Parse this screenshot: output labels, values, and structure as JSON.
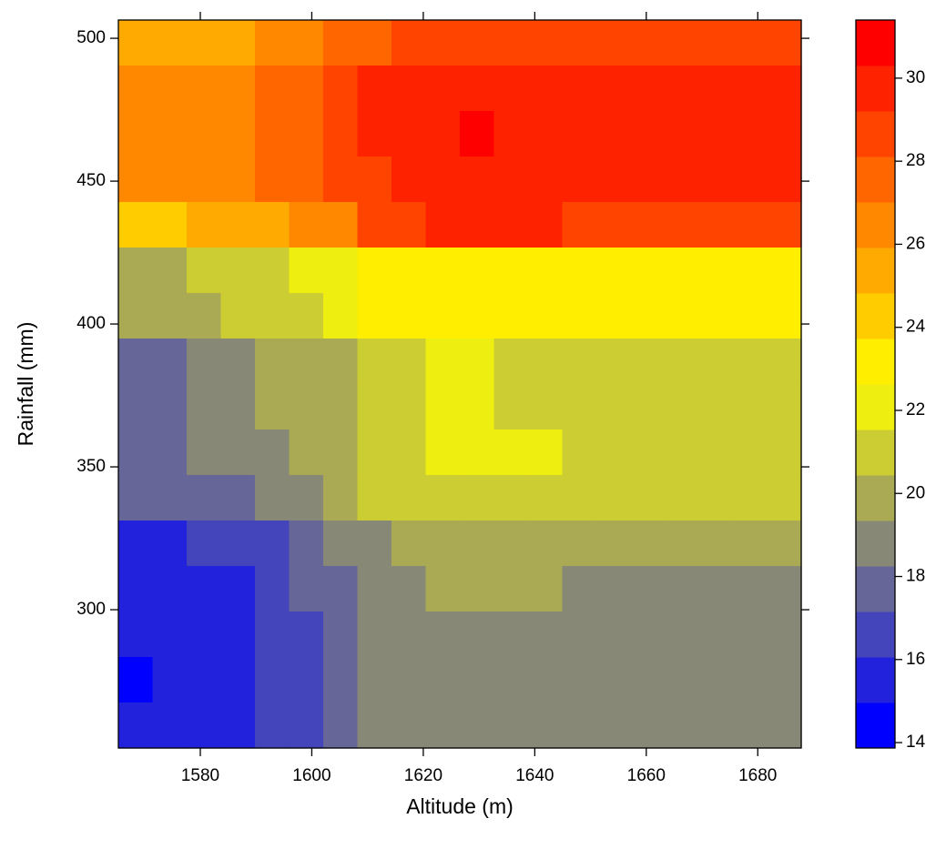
{
  "chart_data": {
    "type": "heatmap",
    "xlabel": "Altitude (m)",
    "ylabel": "Rainfall (mm)",
    "x": [
      1568.36,
      1574.49,
      1580.61,
      1586.74,
      1592.86,
      1598.99,
      1605.11,
      1611.24,
      1617.36,
      1623.49,
      1629.61,
      1635.74,
      1641.86,
      1647.99,
      1654.11,
      1660.24,
      1666.36,
      1672.49,
      1678.61,
      1684.74
    ],
    "y": [
      498.44,
      482.51,
      466.59,
      450.66,
      434.74,
      418.81,
      402.89,
      386.96,
      371.04,
      355.11,
      339.19,
      323.26,
      307.34,
      291.41,
      275.49,
      259.56
    ],
    "z": [
      [
        25.4,
        25.4,
        25.4,
        25.4,
        26.5,
        26.5,
        27.6,
        27.6,
        28.7,
        28.7,
        28.7,
        28.7,
        28.7,
        28.7,
        28.7,
        28.7,
        28.7,
        28.7,
        28.7,
        28.7
      ],
      [
        26.5,
        26.5,
        26.5,
        26.5,
        27.6,
        27.6,
        28.7,
        29.8,
        29.8,
        29.8,
        29.8,
        29.8,
        29.8,
        29.8,
        29.8,
        29.8,
        29.8,
        29.8,
        29.8,
        29.8
      ],
      [
        26.5,
        26.5,
        26.5,
        26.5,
        27.6,
        27.6,
        28.7,
        29.8,
        29.8,
        29.8,
        30.9,
        29.8,
        29.8,
        29.8,
        29.8,
        29.8,
        29.8,
        29.8,
        29.8,
        29.8
      ],
      [
        26.5,
        26.5,
        26.5,
        26.5,
        27.6,
        27.6,
        28.7,
        28.7,
        29.8,
        29.8,
        29.8,
        29.8,
        29.8,
        29.8,
        29.8,
        29.8,
        29.8,
        29.8,
        29.8,
        29.8
      ],
      [
        24.3,
        24.3,
        25.4,
        25.4,
        25.4,
        26.5,
        26.5,
        28.7,
        28.7,
        29.8,
        29.8,
        29.8,
        29.8,
        28.7,
        28.7,
        28.7,
        28.7,
        28.7,
        28.7,
        28.7
      ],
      [
        19.9,
        19.9,
        21.0,
        21.0,
        21.0,
        22.1,
        22.1,
        23.2,
        23.2,
        23.2,
        23.2,
        23.2,
        23.2,
        23.2,
        23.2,
        23.2,
        23.2,
        23.2,
        23.2,
        23.2
      ],
      [
        19.9,
        19.9,
        19.9,
        21.0,
        21.0,
        21.0,
        22.1,
        23.2,
        23.2,
        23.2,
        23.2,
        23.2,
        23.2,
        23.2,
        23.2,
        23.2,
        23.2,
        23.2,
        23.2,
        23.2
      ],
      [
        17.7,
        17.7,
        18.8,
        18.8,
        19.9,
        19.9,
        19.9,
        21.0,
        21.0,
        22.1,
        22.1,
        21.0,
        21.0,
        21.0,
        21.0,
        21.0,
        21.0,
        21.0,
        21.0,
        21.0
      ],
      [
        17.7,
        17.7,
        18.8,
        18.8,
        19.9,
        19.9,
        19.9,
        21.0,
        21.0,
        22.1,
        22.1,
        21.0,
        21.0,
        21.0,
        21.0,
        21.0,
        21.0,
        21.0,
        21.0,
        21.0
      ],
      [
        17.7,
        17.7,
        18.8,
        18.8,
        18.8,
        19.9,
        19.9,
        21.0,
        21.0,
        22.1,
        22.1,
        22.1,
        22.1,
        21.0,
        21.0,
        21.0,
        21.0,
        21.0,
        21.0,
        21.0
      ],
      [
        17.7,
        17.7,
        17.7,
        17.7,
        18.8,
        18.8,
        19.9,
        21.0,
        21.0,
        21.0,
        21.0,
        21.0,
        21.0,
        21.0,
        21.0,
        21.0,
        21.0,
        21.0,
        21.0,
        21.0
      ],
      [
        15.5,
        15.5,
        16.6,
        16.6,
        16.6,
        17.7,
        18.8,
        18.8,
        19.9,
        19.9,
        19.9,
        19.9,
        19.9,
        19.9,
        19.9,
        19.9,
        19.9,
        19.9,
        19.9,
        19.9
      ],
      [
        15.5,
        15.5,
        15.5,
        15.5,
        16.6,
        17.7,
        17.7,
        18.8,
        18.8,
        19.9,
        19.9,
        19.9,
        19.9,
        18.8,
        18.8,
        18.8,
        18.8,
        18.8,
        18.8,
        18.8
      ],
      [
        15.5,
        15.5,
        15.5,
        15.5,
        16.6,
        16.6,
        17.7,
        18.8,
        18.8,
        18.8,
        18.8,
        18.8,
        18.8,
        18.8,
        18.8,
        18.8,
        18.8,
        18.8,
        18.8,
        18.8
      ],
      [
        14.4,
        15.5,
        15.5,
        15.5,
        16.6,
        16.6,
        17.7,
        18.8,
        18.8,
        18.8,
        18.8,
        18.8,
        18.8,
        18.8,
        18.8,
        18.8,
        18.8,
        18.8,
        18.8,
        18.8
      ],
      [
        15.5,
        15.5,
        15.5,
        15.5,
        16.6,
        16.6,
        17.7,
        18.8,
        18.8,
        18.8,
        18.8,
        18.8,
        18.8,
        18.8,
        18.8,
        18.8,
        18.8,
        18.8,
        18.8,
        18.8
      ]
    ],
    "xlim": [
      1565.3,
      1687.8
    ],
    "xticks": [
      1580,
      1600,
      1620,
      1640,
      1660,
      1680
    ],
    "ylim": [
      251.6,
      506.4
    ],
    "yticks": [
      300,
      350,
      400,
      450,
      500
    ],
    "zlim": [
      13.87,
      31.4
    ],
    "zticks": [
      14,
      16,
      18,
      20,
      22,
      24,
      26,
      28,
      30
    ],
    "colors": [
      "#0000ff",
      "#2222dd",
      "#4444bb",
      "#666699",
      "#888877",
      "#aaaa55",
      "#cccc33",
      "#eeee11",
      "#ffee00",
      "#ffcc00",
      "#ffaa00",
      "#ff8800",
      "#ff6600",
      "#ff4400",
      "#ff2200",
      "#ff0000"
    ]
  }
}
